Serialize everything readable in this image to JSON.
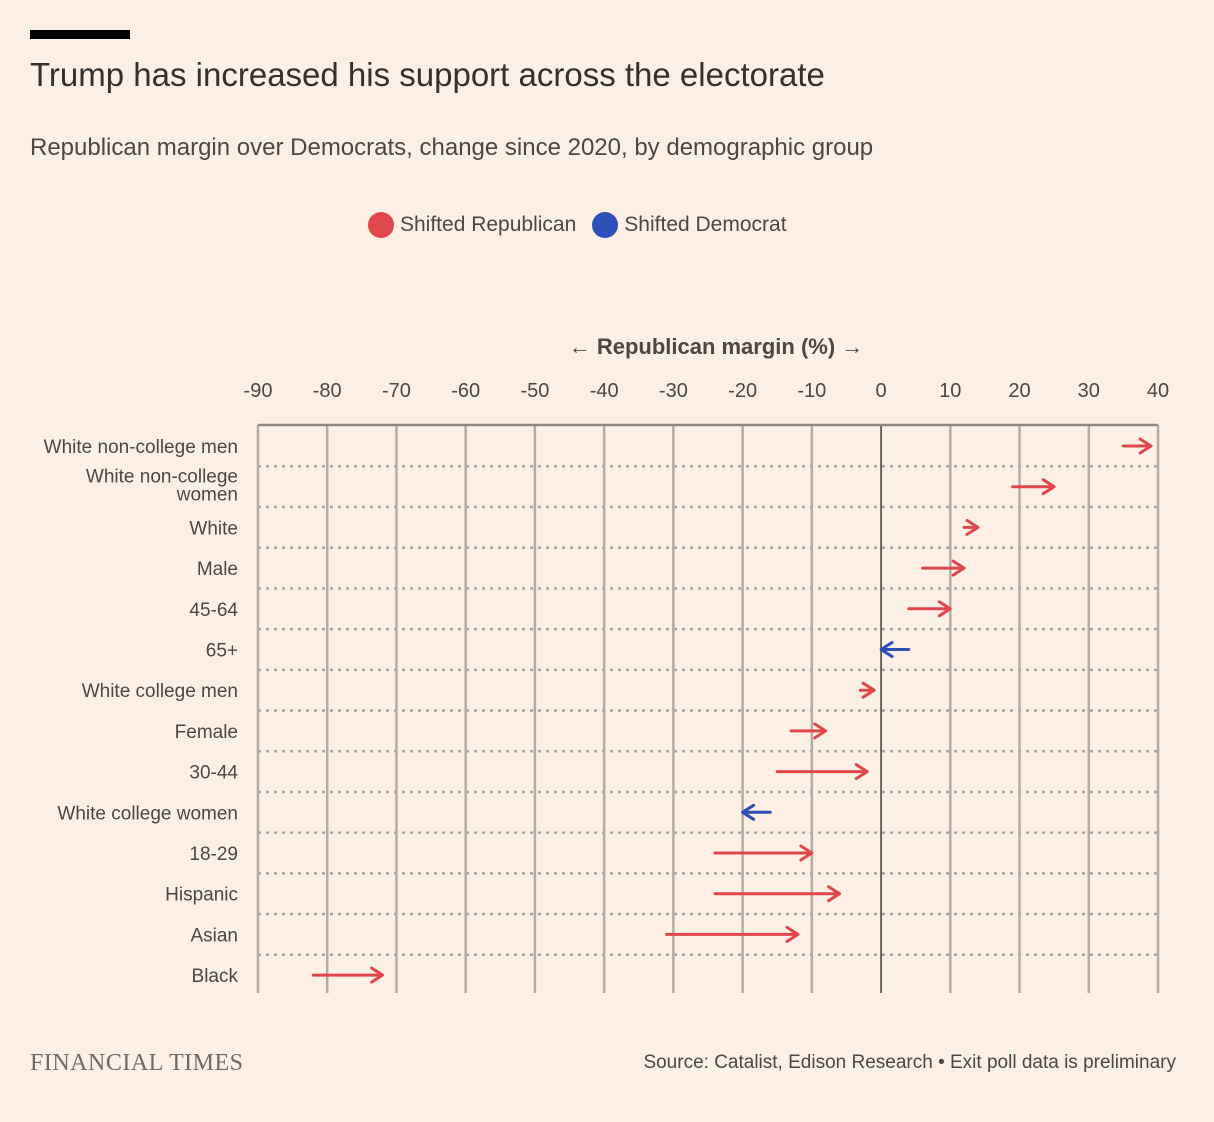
{
  "header": {
    "title": "Trump has increased his support across the electorate",
    "subtitle": "Republican margin over Democrats, change since 2020, by demographic group"
  },
  "legend": [
    {
      "label": "Shifted Republican",
      "color": "#e0474c"
    },
    {
      "label": "Shifted Democrat",
      "color": "#2e4fb8"
    }
  ],
  "footer": {
    "logo": "FINANCIAL TIMES",
    "source": "Source: Catalist, Edison Research • Exit poll data is preliminary"
  },
  "chart_data": {
    "type": "arrow",
    "xlabel": "← Republican margin (%) →",
    "xlim": [
      -90,
      40
    ],
    "xticks": [
      -90,
      -80,
      -70,
      -60,
      -50,
      -40,
      -30,
      -20,
      -10,
      0,
      10,
      20,
      30,
      40
    ],
    "grid": true,
    "legend_position": "top-center",
    "colors": {
      "republican": "#e0474c",
      "democrat": "#2e4fb8"
    },
    "rows": [
      {
        "label": [
          "White non-college men"
        ],
        "from": 35,
        "to": 39,
        "shift": "republican"
      },
      {
        "label": [
          "White non-college",
          "women"
        ],
        "from": 19,
        "to": 25,
        "shift": "republican"
      },
      {
        "label": [
          "White"
        ],
        "from": 12,
        "to": 14,
        "shift": "republican"
      },
      {
        "label": [
          "Male"
        ],
        "from": 6,
        "to": 12,
        "shift": "republican"
      },
      {
        "label": [
          "45-64"
        ],
        "from": 4,
        "to": 10,
        "shift": "republican"
      },
      {
        "label": [
          "65+"
        ],
        "from": 4,
        "to": 0,
        "shift": "democrat"
      },
      {
        "label": [
          "White college men"
        ],
        "from": -3,
        "to": -1,
        "shift": "republican"
      },
      {
        "label": [
          "Female"
        ],
        "from": -13,
        "to": -8,
        "shift": "republican"
      },
      {
        "label": [
          "30-44"
        ],
        "from": -15,
        "to": -2,
        "shift": "republican"
      },
      {
        "label": [
          "White college women"
        ],
        "from": -16,
        "to": -20,
        "shift": "democrat"
      },
      {
        "label": [
          "18-29"
        ],
        "from": -24,
        "to": -10,
        "shift": "republican"
      },
      {
        "label": [
          "Hispanic"
        ],
        "from": -24,
        "to": -6,
        "shift": "republican"
      },
      {
        "label": [
          "Asian"
        ],
        "from": -31,
        "to": -12,
        "shift": "republican"
      },
      {
        "label": [
          "Black"
        ],
        "from": -82,
        "to": -72,
        "shift": "republican"
      }
    ]
  }
}
